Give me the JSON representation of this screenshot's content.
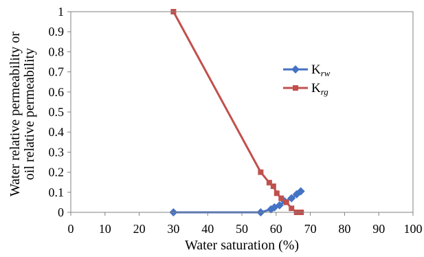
{
  "chart_data": {
    "type": "line",
    "title": "",
    "xlabel": "Water saturation (%)",
    "ylabel_lines": [
      "Water relative permeability or",
      "oil relative permeability"
    ],
    "xlim": [
      0,
      100
    ],
    "ylim": [
      0,
      1
    ],
    "x_ticks": [
      0,
      10,
      20,
      30,
      40,
      50,
      60,
      70,
      80,
      90,
      100
    ],
    "y_ticks": [
      0,
      0.1,
      0.2,
      0.3,
      0.4,
      0.5,
      0.6,
      0.7,
      0.8,
      0.9,
      1
    ],
    "y_tick_labels": [
      "0",
      "0.1",
      "0.2",
      "0.3",
      "0.4",
      "0.5",
      "0.6",
      "0.7",
      "0.8",
      "0.9",
      "1"
    ],
    "grid": false,
    "legend_position": "right",
    "series": [
      {
        "name": "K",
        "name_sub": "rw",
        "color": "#4472C4",
        "marker": "diamond",
        "x": [
          30,
          55.5,
          58.5,
          59.5,
          61,
          62.5,
          64.5,
          66,
          67.2
        ],
        "y": [
          0,
          0,
          0.015,
          0.025,
          0.035,
          0.055,
          0.07,
          0.09,
          0.105
        ]
      },
      {
        "name": "K",
        "name_sub": "rg",
        "color": "#C0504D",
        "marker": "square",
        "x": [
          30,
          55.5,
          58,
          59.2,
          60.2,
          61.5,
          63,
          64.5,
          66,
          67.3
        ],
        "y": [
          1,
          0.2,
          0.148,
          0.13,
          0.095,
          0.07,
          0.05,
          0.02,
          0,
          0
        ]
      }
    ]
  }
}
